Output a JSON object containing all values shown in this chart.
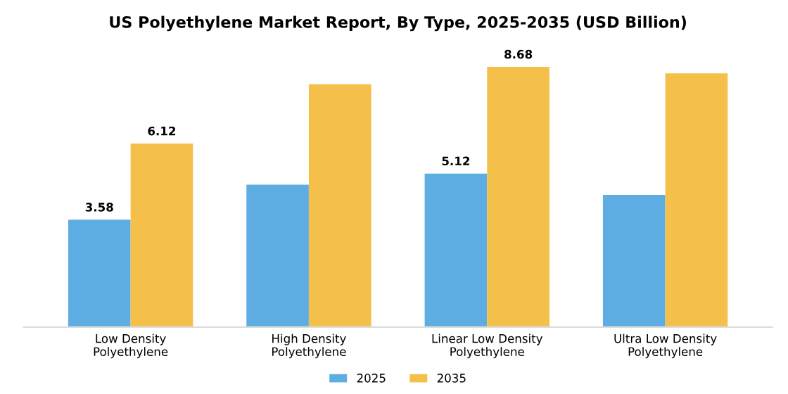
{
  "chart_data": {
    "type": "bar",
    "title": "US Polyethylene Market Report, By Type, 2025-2035 (USD Billion)",
    "categories": [
      "Low Density\nPolyethylene",
      "High Density\nPolyethylene",
      "Linear Low Density\nPolyethylene",
      "Ultra Low Density\nPolyethylene"
    ],
    "series": [
      {
        "name": "2025",
        "color": "#5dade2",
        "values": [
          3.58,
          4.75,
          5.12,
          4.41
        ],
        "value_labels": [
          "3.58",
          null,
          "5.12",
          null
        ]
      },
      {
        "name": "2035",
        "color": "#f5c04a",
        "values": [
          6.12,
          8.1,
          8.68,
          8.46
        ],
        "value_labels": [
          "6.12",
          null,
          "8.68",
          null
        ]
      }
    ],
    "legend": "bottom",
    "grid": false
  }
}
